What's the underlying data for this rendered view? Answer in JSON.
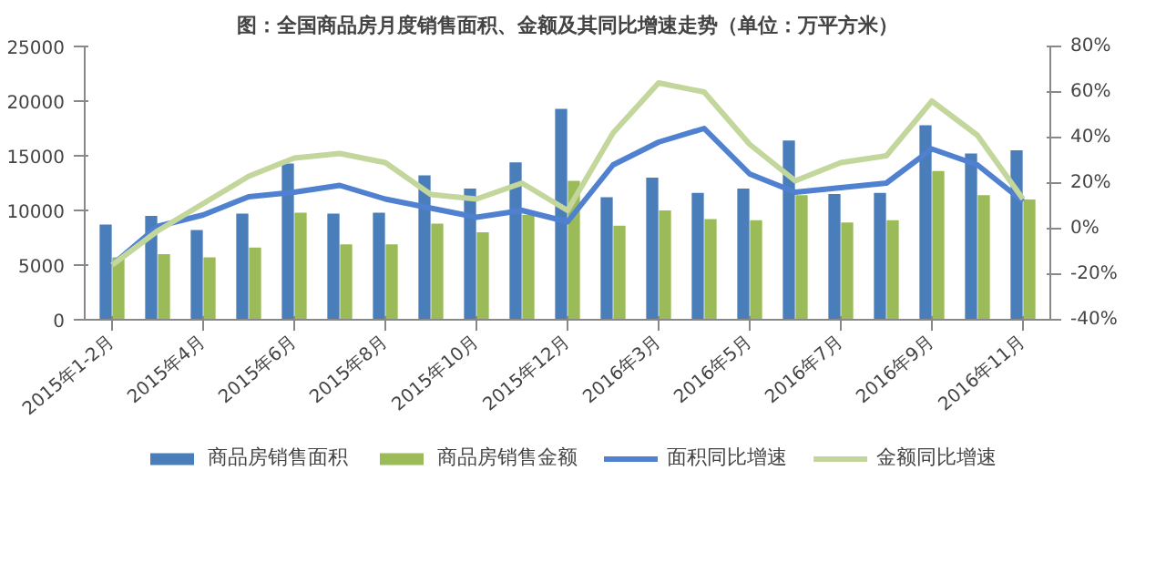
{
  "chart_data": {
    "type": "bar",
    "title": "图：全国商品房月度销售面积、金额及其同比增速走势（单位：万平方米）",
    "categories": [
      "2015年1-2月",
      null,
      "2015年4月",
      null,
      "2015年6月",
      null,
      "2015年8月",
      null,
      "2015年10月",
      null,
      "2015年12月",
      null,
      "2016年3月",
      null,
      "2016年5月",
      null,
      "2016年7月",
      null,
      "2016年9月",
      null,
      "2016年11月"
    ],
    "series": [
      {
        "name": "商品房销售面积",
        "type": "bar",
        "color": "#4a7ebb",
        "values": [
          8700,
          9500,
          8200,
          9700,
          14300,
          9700,
          9800,
          13200,
          12000,
          14400,
          19300,
          11200,
          13000,
          11600,
          12000,
          16400,
          11500,
          11600,
          17800,
          15200,
          15500
        ]
      },
      {
        "name": "商品房销售金额",
        "color": "#9bbb59",
        "values": [
          5700,
          6000,
          5700,
          6600,
          9800,
          6900,
          6900,
          8800,
          8000,
          9600,
          12700,
          8600,
          10000,
          9200,
          9100,
          11400,
          8900,
          9100,
          13600,
          11400,
          11000
        ]
      },
      {
        "name": "面积同比增速",
        "type": "line",
        "axis": "y2",
        "color": "#4f81d0",
        "values": [
          -16,
          1,
          6,
          14,
          16,
          19,
          13,
          9,
          5,
          8,
          3,
          28,
          38,
          44,
          24,
          16,
          18,
          20,
          35,
          28,
          12
        ]
      },
      {
        "name": "金额同比增速",
        "type": "line",
        "axis": "y2",
        "color": "#c3d69b",
        "values": [
          -16,
          -1,
          11,
          23,
          31,
          33,
          29,
          15,
          13,
          20,
          8,
          42,
          64,
          60,
          37,
          21,
          29,
          32,
          56,
          41,
          13
        ]
      }
    ],
    "ylim": [
      0,
      25000
    ],
    "yticks": [
      0,
      5000,
      10000,
      15000,
      20000,
      25000
    ],
    "y2lim": [
      -40,
      80
    ],
    "y2ticks": [
      {
        "value": -40,
        "label": "-40%"
      },
      {
        "value": -20,
        "label": "-20%"
      },
      {
        "value": 0,
        "label": "0%"
      },
      {
        "value": 20,
        "label": "20%"
      },
      {
        "value": 40,
        "label": "40%"
      },
      {
        "value": 60,
        "label": "60%"
      },
      {
        "value": 80,
        "label": "80%"
      }
    ],
    "grid": false,
    "legend": "bottom"
  }
}
